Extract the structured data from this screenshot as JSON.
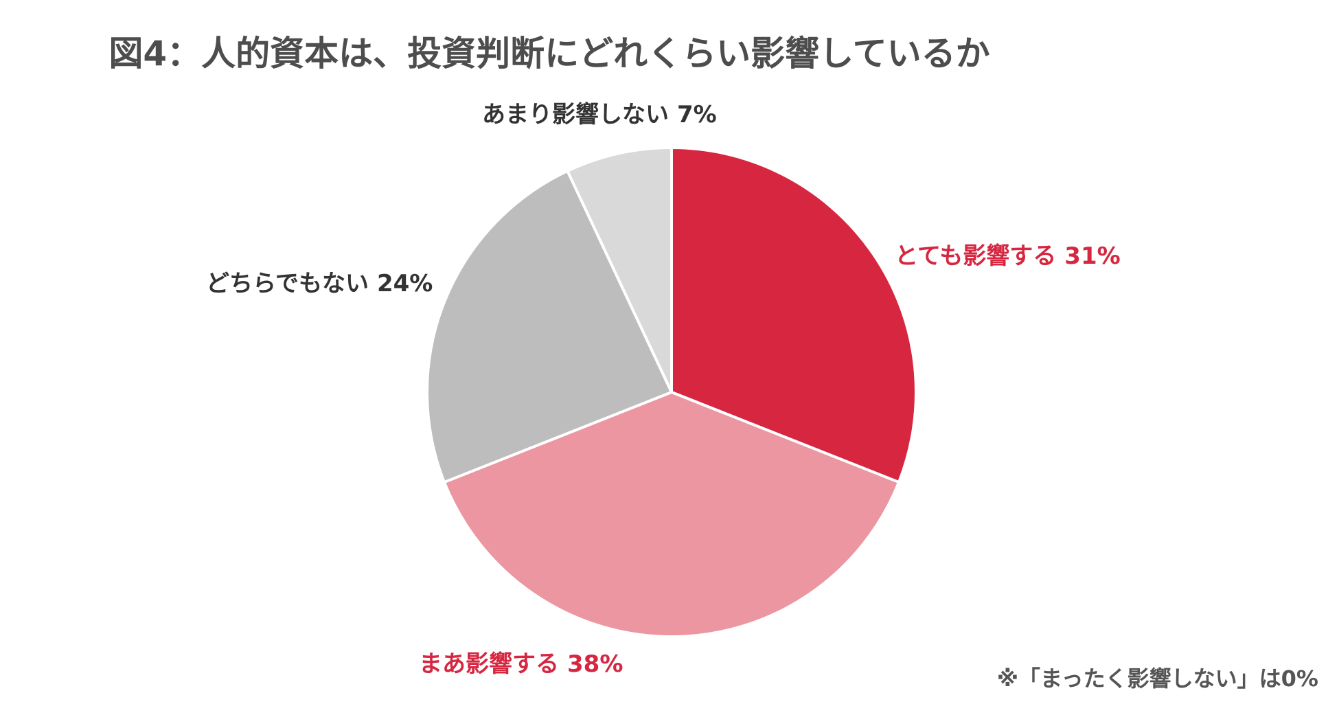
{
  "title": "図4：人的資本は、投資判断にどれくらい影響しているか",
  "note": "※「まったく影響しない」は0%",
  "colors": {
    "very": "#d62640",
    "somewhat": "#eb96a0",
    "neutral": "#bdbdbd",
    "little": "#d9d9d9",
    "label_red": "#d62640",
    "label_dark": "#333333"
  },
  "chart_data": {
    "type": "pie",
    "title": "図4：人的資本は、投資判断にどれくらい影響しているか",
    "start_angle": "12 o'clock",
    "direction": "clockwise",
    "slices": [
      {
        "label": "とても影響する",
        "value": 31,
        "display": "31%",
        "color": "#d62640",
        "label_color": "#d62640"
      },
      {
        "label": "まあ影響する",
        "value": 38,
        "display": "38%",
        "color": "#eb96a0",
        "label_color": "#d62640"
      },
      {
        "label": "どちらでもない",
        "value": 24,
        "display": "24%",
        "color": "#bdbdbd",
        "label_color": "#333333"
      },
      {
        "label": "あまり影響しない",
        "value": 7,
        "display": "7%",
        "color": "#d9d9d9",
        "label_color": "#333333"
      }
    ],
    "footnote": "※「まったく影響しない」は0%"
  }
}
